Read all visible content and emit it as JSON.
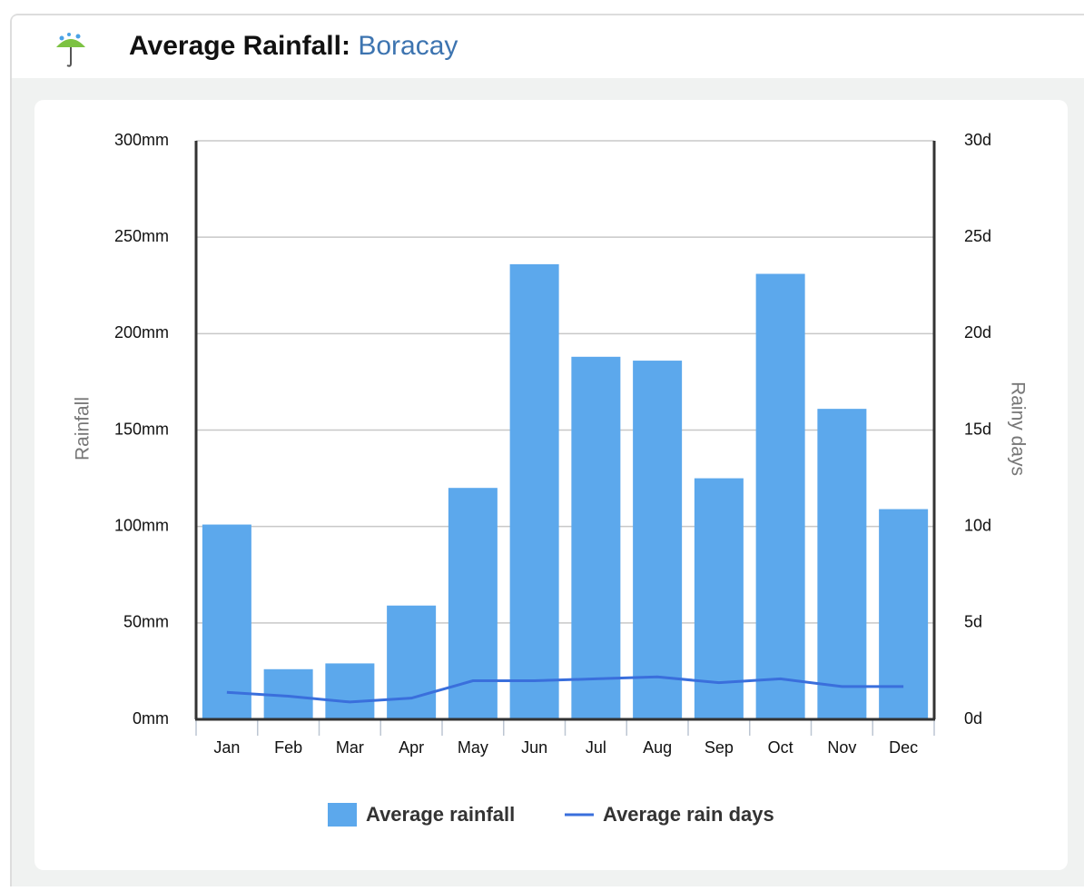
{
  "chart_data": {
    "type": "bar",
    "title": "Average Rainfall:",
    "location": "Boracay",
    "y_label": "Rainfall",
    "y2_label": "Rainy days",
    "categories": [
      "Jan",
      "Feb",
      "Mar",
      "Apr",
      "May",
      "Jun",
      "Jul",
      "Aug",
      "Sep",
      "Oct",
      "Nov",
      "Dec"
    ],
    "series": [
      {
        "name": "Average rainfall",
        "type": "bar",
        "color": "#5ca8ec",
        "values": [
          101,
          26,
          29,
          59,
          120,
          236,
          188,
          186,
          125,
          231,
          161,
          109
        ]
      },
      {
        "name": "Average rain days",
        "type": "line",
        "axis": "y2",
        "color": "#3a6fdc",
        "values": [
          1.4,
          1.2,
          0.9,
          1.1,
          2.0,
          2.0,
          2.1,
          2.2,
          1.9,
          2.1,
          1.7,
          1.7
        ]
      }
    ],
    "ylim": [
      0,
      300
    ],
    "yticks": [
      {
        "value": 0,
        "label": "0mm"
      },
      {
        "value": 50,
        "label": "50mm"
      },
      {
        "value": 100,
        "label": "100mm"
      },
      {
        "value": 150,
        "label": "150mm"
      },
      {
        "value": 200,
        "label": "200mm"
      },
      {
        "value": 250,
        "label": "250mm"
      },
      {
        "value": 300,
        "label": "300mm"
      }
    ],
    "y2lim": [
      0,
      30
    ],
    "y2ticks": [
      {
        "value": 0,
        "label": "0d"
      },
      {
        "value": 5,
        "label": "5d"
      },
      {
        "value": 10,
        "label": "10d"
      },
      {
        "value": 15,
        "label": "15d"
      },
      {
        "value": 20,
        "label": "20d"
      },
      {
        "value": 25,
        "label": "25d"
      },
      {
        "value": 30,
        "label": "30d"
      }
    ],
    "grid": true
  }
}
